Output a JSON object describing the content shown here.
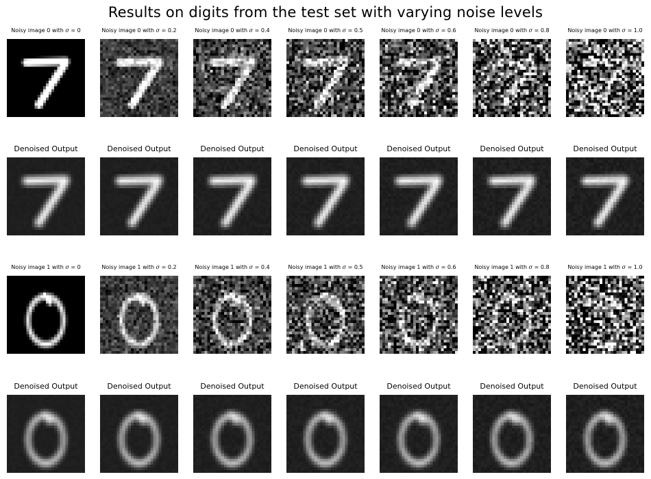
{
  "suptitle": "Results on digits from the test set with varying noise levels",
  "rows": [
    {
      "kind": "noisy",
      "digit": "7",
      "titles": [
        "Noisy image 0 with σ = 0",
        "Noisy image 0 with σ = 0.2",
        "Noisy image 0 with σ = 0.4",
        "Noisy image 0 with σ = 0.5",
        "Noisy image 0 with σ = 0.6",
        "Noisy image 0 with σ = 0.8",
        "Noisy image 0 with σ = 1.0"
      ],
      "sigmas": [
        0,
        0.2,
        0.4,
        0.5,
        0.6,
        0.8,
        1.0
      ]
    },
    {
      "kind": "denoised",
      "digit": "7",
      "titles": [
        "Denoised Output",
        "Denoised Output",
        "Denoised Output",
        "Denoised Output",
        "Denoised Output",
        "Denoised Output",
        "Denoised Output"
      ],
      "sigmas": [
        0,
        0.2,
        0.4,
        0.5,
        0.6,
        0.8,
        1.0
      ]
    },
    {
      "kind": "noisy",
      "digit": "0",
      "titles": [
        "Noisy image 1 with σ = 0",
        "Noisy image 1 with σ = 0.2",
        "Noisy image 1 with σ = 0.4",
        "Noisy image 1 with σ = 0.5",
        "Noisy image 1 with σ = 0.6",
        "Noisy image 1 with σ = 0.8",
        "Noisy image 1 with σ = 1.0"
      ],
      "sigmas": [
        0,
        0.2,
        0.4,
        0.5,
        0.6,
        0.8,
        1.0
      ]
    },
    {
      "kind": "denoised",
      "digit": "0",
      "titles": [
        "Denoised Output",
        "Denoised Output",
        "Denoised Output",
        "Denoised Output",
        "Denoised Output",
        "Denoised Output",
        "Denoised Output"
      ],
      "sigmas": [
        0,
        0.2,
        0.4,
        0.5,
        0.6,
        0.8,
        1.0
      ]
    }
  ]
}
